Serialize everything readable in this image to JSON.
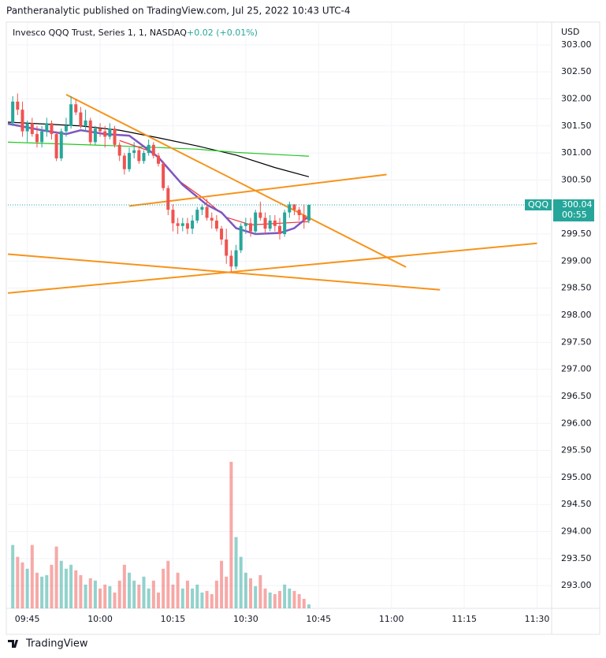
{
  "header": {
    "publisher": "Pantheranalytic published on TradingView.com, Jul 25, 2022 10:43 UTC-4"
  },
  "footer": {
    "brand": "TradingView"
  },
  "chart_data": {
    "type": "candlestick",
    "title": "Invesco QQQ Trust, Series 1, 1, NASDAQ",
    "change": "+0.02 (+0.01%)",
    "currency": "USD",
    "symbol_tag": "QQQ",
    "last_price": 300.04,
    "countdown": "00:55",
    "up_color": "#26a69a",
    "down_color": "#ef5350",
    "x": [
      "09:42",
      "09:43",
      "09:44",
      "09:45",
      "09:46",
      "09:47",
      "09:48",
      "09:49",
      "09:50",
      "09:51",
      "09:52",
      "09:53",
      "09:54",
      "09:55",
      "09:56",
      "09:57",
      "09:58",
      "09:59",
      "10:00",
      "10:01",
      "10:02",
      "10:03",
      "10:04",
      "10:05",
      "10:06",
      "10:07",
      "10:08",
      "10:09",
      "10:10",
      "10:11",
      "10:12",
      "10:13",
      "10:14",
      "10:15",
      "10:16",
      "10:17",
      "10:18",
      "10:19",
      "10:20",
      "10:21",
      "10:22",
      "10:23",
      "10:24",
      "10:25",
      "10:26",
      "10:27",
      "10:28",
      "10:29",
      "10:30",
      "10:31",
      "10:32",
      "10:33",
      "10:34",
      "10:35",
      "10:36",
      "10:37",
      "10:38",
      "10:39",
      "10:40",
      "10:41",
      "10:42",
      "10:43"
    ],
    "open": [
      301.55,
      301.95,
      301.8,
      301.4,
      301.55,
      301.35,
      301.2,
      301.4,
      301.55,
      301.35,
      300.9,
      301.4,
      301.5,
      301.9,
      301.75,
      301.5,
      301.6,
      301.2,
      301.45,
      301.4,
      301.3,
      301.45,
      301.15,
      300.95,
      300.7,
      301.0,
      301.05,
      300.85,
      301.0,
      301.15,
      300.95,
      300.8,
      300.35,
      299.95,
      299.7,
      299.65,
      299.7,
      299.6,
      299.75,
      299.95,
      300.0,
      299.8,
      299.75,
      299.6,
      299.4,
      299.1,
      298.9,
      299.2,
      299.65,
      299.7,
      299.55,
      299.9,
      299.8,
      299.6,
      299.75,
      299.65,
      299.5,
      299.9,
      300.05,
      299.95,
      299.85,
      299.75
    ],
    "high": [
      302.05,
      302.1,
      301.95,
      301.6,
      301.65,
      301.5,
      301.5,
      301.65,
      301.6,
      301.4,
      301.45,
      301.65,
      302.05,
      302.0,
      301.85,
      301.8,
      301.65,
      301.5,
      301.55,
      301.5,
      301.55,
      301.5,
      301.2,
      301.0,
      301.1,
      301.2,
      301.1,
      301.05,
      301.25,
      301.2,
      301.0,
      300.85,
      300.4,
      300.05,
      299.8,
      299.8,
      299.8,
      299.85,
      300.0,
      300.05,
      300.15,
      299.9,
      299.85,
      299.65,
      299.6,
      299.2,
      299.3,
      299.7,
      299.8,
      299.8,
      299.95,
      300.1,
      299.9,
      299.85,
      299.85,
      299.8,
      299.95,
      300.1,
      300.05,
      300.0,
      300.05,
      300.05
    ],
    "low": [
      301.5,
      301.7,
      301.3,
      301.2,
      301.3,
      301.1,
      301.1,
      301.3,
      301.25,
      300.85,
      300.85,
      301.3,
      301.45,
      301.7,
      301.45,
      301.4,
      301.15,
      301.15,
      301.3,
      301.1,
      301.25,
      301.1,
      300.85,
      300.6,
      300.65,
      300.9,
      300.8,
      300.8,
      300.95,
      300.9,
      300.75,
      300.3,
      299.85,
      299.55,
      299.5,
      299.55,
      299.5,
      299.5,
      299.7,
      299.85,
      299.75,
      299.6,
      299.55,
      299.3,
      298.95,
      298.8,
      298.85,
      299.15,
      299.5,
      299.45,
      299.5,
      299.75,
      299.5,
      299.55,
      299.55,
      299.4,
      299.45,
      299.8,
      299.85,
      299.75,
      299.6,
      299.7
    ],
    "close": [
      301.95,
      301.8,
      301.4,
      301.55,
      301.35,
      301.2,
      301.4,
      301.55,
      301.35,
      300.9,
      301.4,
      301.5,
      301.9,
      301.75,
      301.5,
      301.6,
      301.2,
      301.45,
      301.4,
      301.3,
      301.45,
      301.15,
      300.95,
      300.7,
      301.0,
      301.05,
      300.85,
      301.0,
      301.15,
      300.95,
      300.8,
      300.35,
      299.95,
      299.7,
      299.65,
      299.7,
      299.6,
      299.75,
      299.95,
      300.0,
      299.8,
      299.75,
      299.6,
      299.4,
      299.1,
      298.9,
      299.2,
      299.65,
      299.7,
      299.55,
      299.9,
      299.8,
      299.6,
      299.75,
      299.65,
      299.5,
      299.9,
      300.05,
      299.95,
      299.85,
      299.75,
      300.04
    ],
    "volume": [
      80,
      65,
      58,
      50,
      80,
      45,
      40,
      42,
      55,
      78,
      60,
      50,
      55,
      48,
      42,
      30,
      38,
      35,
      25,
      30,
      28,
      20,
      35,
      55,
      45,
      35,
      30,
      40,
      25,
      35,
      20,
      50,
      60,
      30,
      45,
      25,
      35,
      25,
      30,
      20,
      22,
      18,
      35,
      60,
      40,
      185,
      90,
      65,
      45,
      38,
      28,
      42,
      25,
      20,
      18,
      22,
      30,
      25,
      22,
      18,
      12,
      5
    ],
    "overlays": [
      {
        "color": "#000000",
        "x": [
          "09:41",
          "09:56",
          "10:04",
          "10:12",
          "10:20",
          "10:28",
          "10:36",
          "10:43"
        ],
        "values": [
          301.57,
          301.5,
          301.42,
          301.28,
          301.13,
          300.96,
          300.73,
          300.56
        ]
      },
      {
        "color": "#22c822",
        "x": [
          "09:41",
          "10:04",
          "10:20",
          "10:28",
          "10:43"
        ],
        "values": [
          301.2,
          301.13,
          301.07,
          301.01,
          300.94
        ]
      },
      {
        "color": "#f23030",
        "x": [
          "10:04",
          "10:11",
          "10:16",
          "10:21",
          "10:26",
          "10:31",
          "10:37",
          "10:43"
        ],
        "values": [
          301.23,
          301.01,
          300.5,
          300.18,
          299.81,
          299.67,
          299.7,
          299.73
        ]
      },
      {
        "color": "#7e57c2",
        "x": [
          "09:41",
          "09:48",
          "09:53",
          "09:56",
          "10:01",
          "10:06",
          "10:12",
          "10:17",
          "10:22",
          "10:25",
          "10:28",
          "10:32",
          "10:37",
          "10:40",
          "10:43"
        ],
        "values": [
          301.54,
          301.42,
          301.35,
          301.42,
          301.35,
          301.32,
          300.92,
          300.41,
          300.04,
          299.9,
          299.61,
          299.5,
          299.52,
          299.61,
          299.83
        ]
      }
    ],
    "drawings": [
      {
        "color": "#f7931a",
        "x": [
          "09:53",
          "11:03"
        ],
        "values": [
          302.08,
          298.89
        ]
      },
      {
        "color": "#f7931a",
        "x": [
          "10:06",
          "10:59"
        ],
        "values": [
          300.02,
          300.6
        ]
      },
      {
        "color": "#f7931a",
        "x": [
          "09:41",
          "11:10"
        ],
        "values": [
          299.13,
          298.47
        ]
      },
      {
        "color": "#f7931a",
        "x": [
          "09:41",
          "11:30"
        ],
        "values": [
          298.41,
          299.33
        ]
      }
    ],
    "xlim": [
      "09:41",
      "11:33"
    ],
    "xticks": [
      "09:45",
      "10:00",
      "10:15",
      "10:30",
      "10:45",
      "11:00",
      "11:15",
      "11:30"
    ],
    "ylim": [
      292.58,
      303.42
    ],
    "yticks": [
      {
        "value": 293,
        "label": "293.00"
      },
      {
        "value": 293.5,
        "label": "293.50"
      },
      {
        "value": 294,
        "label": "294.00"
      },
      {
        "value": 294.5,
        "label": "294.50"
      },
      {
        "value": 295,
        "label": "295.00"
      },
      {
        "value": 295.5,
        "label": "295.50"
      },
      {
        "value": 296,
        "label": "296.00"
      },
      {
        "value": 296.5,
        "label": "296.50"
      },
      {
        "value": 297,
        "label": "297.00"
      },
      {
        "value": 297.5,
        "label": "297.50"
      },
      {
        "value": 298,
        "label": "298.00"
      },
      {
        "value": 298.5,
        "label": "298.50"
      },
      {
        "value": 299,
        "label": "299.00"
      },
      {
        "value": 299.5,
        "label": "299.50"
      },
      {
        "value": 300,
        "label": "300.00"
      },
      {
        "value": 300.5,
        "label": "300.50"
      },
      {
        "value": 301,
        "label": "301.00"
      },
      {
        "value": 301.5,
        "label": "301.50"
      },
      {
        "value": 302,
        "label": "302.00"
      },
      {
        "value": 302.5,
        "label": "302.50"
      },
      {
        "value": 303,
        "label": "303.00"
      }
    ],
    "grid": true
  }
}
